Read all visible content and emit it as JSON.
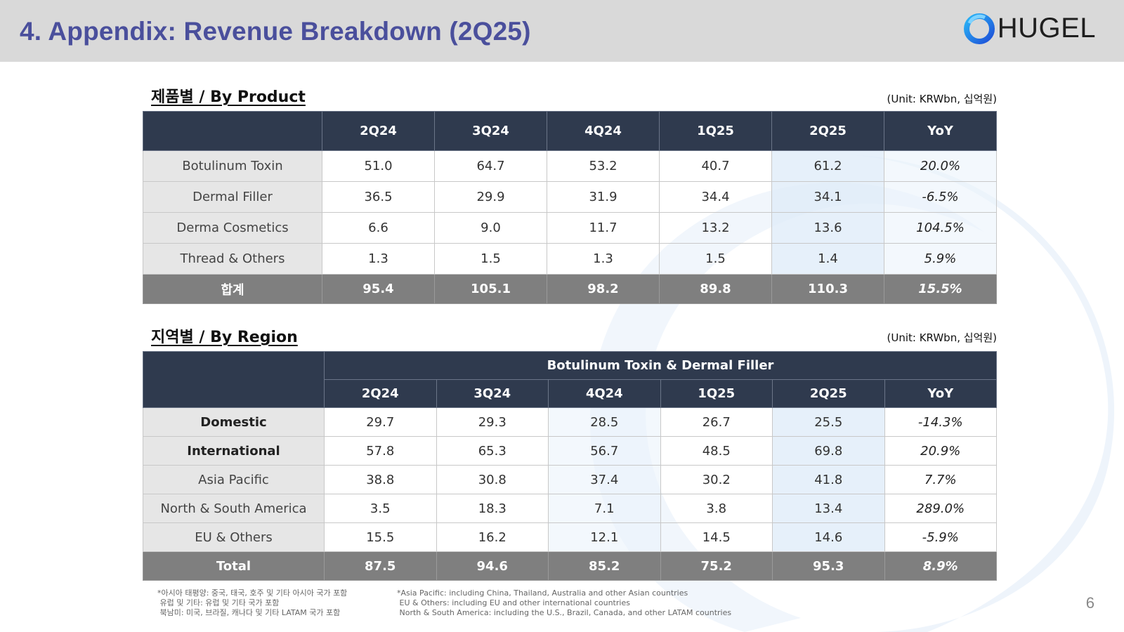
{
  "header": {
    "title": "4. Appendix: Revenue Breakdown (2Q25)",
    "logo_text": "HUGEL"
  },
  "product_section": {
    "title": "제품별 / By Product",
    "unit": "(Unit: KRWbn, 십억원)",
    "columns": [
      "",
      "2Q24",
      "3Q24",
      "4Q24",
      "1Q25",
      "2Q25",
      "YoY"
    ],
    "rows": [
      {
        "label": "Botulinum Toxin",
        "values": [
          "51.0",
          "64.7",
          "53.2",
          "40.7",
          "61.2"
        ],
        "yoy": "20.0%"
      },
      {
        "label": "Dermal Filler",
        "values": [
          "36.5",
          "29.9",
          "31.9",
          "34.4",
          "34.1"
        ],
        "yoy": "-6.5%"
      },
      {
        "label": "Derma Cosmetics",
        "values": [
          "6.6",
          "9.0",
          "11.7",
          "13.2",
          "13.6"
        ],
        "yoy": "104.5%"
      },
      {
        "label": "Thread & Others",
        "values": [
          "1.3",
          "1.5",
          "1.3",
          "1.5",
          "1.4"
        ],
        "yoy": "5.9%"
      }
    ],
    "total": {
      "label": "합계",
      "values": [
        "95.4",
        "105.1",
        "98.2",
        "89.8",
        "110.3"
      ],
      "yoy": "15.5%"
    }
  },
  "region_section": {
    "title": "지역별 / By Region",
    "unit": "(Unit: KRWbn, 십억원)",
    "group_header": "Botulinum Toxin & Dermal Filler",
    "columns": [
      "2Q24",
      "3Q24",
      "4Q24",
      "1Q25",
      "2Q25",
      "YoY"
    ],
    "rows": [
      {
        "label": "Domestic",
        "values": [
          "29.7",
          "29.3",
          "28.5",
          "26.7",
          "25.5"
        ],
        "yoy": "-14.3%"
      },
      {
        "label": "International",
        "values": [
          "57.8",
          "65.3",
          "56.7",
          "48.5",
          "69.8"
        ],
        "yoy": "20.9%"
      },
      {
        "label": "Asia Pacific",
        "values": [
          "38.8",
          "30.8",
          "37.4",
          "30.2",
          "41.8"
        ],
        "yoy": "7.7%"
      },
      {
        "label": "North & South America",
        "values": [
          "3.5",
          "18.3",
          "7.1",
          "3.8",
          "13.4"
        ],
        "yoy": "289.0%"
      },
      {
        "label": "EU & Others",
        "values": [
          "15.5",
          "16.2",
          "12.1",
          "14.5",
          "14.6"
        ],
        "yoy": "-5.9%"
      }
    ],
    "total": {
      "label": "Total",
      "values": [
        "87.5",
        "94.6",
        "85.2",
        "75.2",
        "95.3"
      ],
      "yoy": "8.9%"
    }
  },
  "footnotes": {
    "korean": [
      "*아시아 태평양: 중국, 태국, 호주 및 기타 아시아 국가 포함",
      " 유럽 및 기타: 유럽 및 기타 국가 포함",
      " 북남미: 미국, 브라질, 캐나다 및 기타 LATAM 국가 포함"
    ],
    "english": [
      "*Asia Pacific: including China, Thailand, Australia and other Asian countries",
      " EU & Others: including EU and other international countries",
      " North & South America: including the U.S., Brazil, Canada, and other LATAM countries"
    ]
  },
  "page_number": "6",
  "colors": {
    "title": "#4a4f9c",
    "header_bg": "#2f3a4e",
    "total_bg": "#7f7f7f",
    "logo_blue": "#1e88e5"
  }
}
